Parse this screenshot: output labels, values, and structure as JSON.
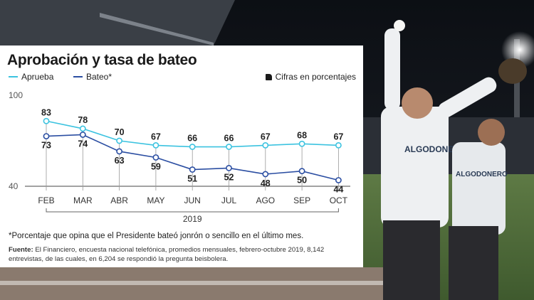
{
  "chart_data": {
    "type": "line",
    "title": "Aprobación y tasa de bateo",
    "units_note": "Cifras en porcentajes",
    "categories": [
      "FEB",
      "MAR",
      "ABR",
      "MAY",
      "JUN",
      "JUL",
      "AGO",
      "SEP",
      "OCT"
    ],
    "year_label": "2019",
    "ylim": [
      40,
      100
    ],
    "yticks": [
      "100",
      "40"
    ],
    "grid": false,
    "legend_position": "top-left",
    "series": [
      {
        "name": "Aprueba",
        "color": "#3cc3e0",
        "values": [
          83,
          78,
          70,
          67,
          66,
          66,
          67,
          68,
          67
        ]
      },
      {
        "name": "Bateo*",
        "color": "#2b4ea2",
        "values": [
          73,
          74,
          63,
          59,
          51,
          52,
          48,
          50,
          44
        ]
      }
    ],
    "footnote": "*Porcentaje que opina que el Presidente bateó jonrón o sencillo en el último mes.",
    "source_label": "Fuente:",
    "source_text": "El Financiero, encuesta nacional telefónica, promedios mensuales, febrero-octubre 2019, 8,142 entrevistas, de las cuales, en 6,204 se respondió la pregunta beisbolera."
  },
  "photo": {
    "jersey_text": "ALGODONERO"
  }
}
